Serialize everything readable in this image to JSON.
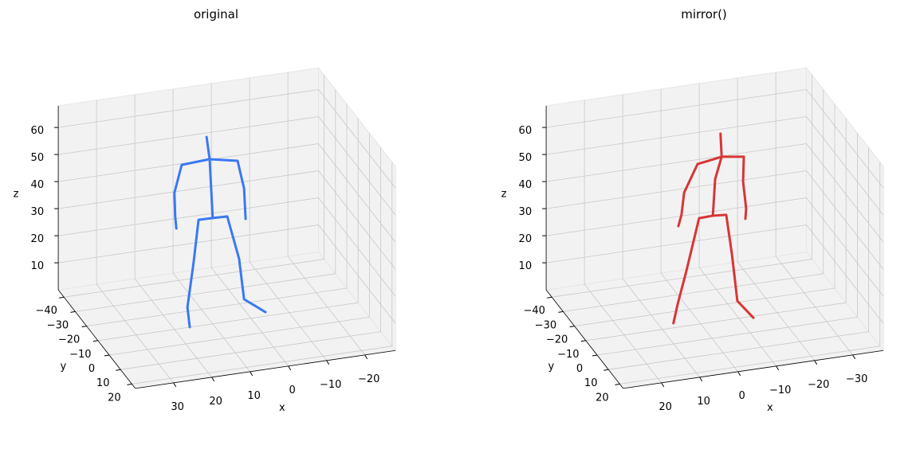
{
  "chart_data": [
    {
      "type": "skeleton3d",
      "title": "original",
      "xlabel": "x",
      "ylabel": "y",
      "zlabel": "z",
      "color": "#3a78f2",
      "xlim": [
        -28,
        40
      ],
      "ylim": [
        -45,
        23
      ],
      "zlim": [
        0,
        68
      ],
      "xticks": [
        {
          "value": -20,
          "label": "−20"
        },
        {
          "value": -10,
          "label": "−10"
        },
        0,
        10,
        20,
        30
      ],
      "yticks": [
        {
          "value": -40,
          "label": "−40"
        },
        {
          "value": -30,
          "label": "−30"
        },
        {
          "value": -20,
          "label": "−20"
        },
        {
          "value": -10,
          "label": "−10"
        },
        0,
        10,
        20
      ],
      "zticks": [
        10,
        20,
        30,
        40,
        50,
        60
      ],
      "limbs": [
        {
          "x": [
            11.6,
            10.8,
            10.0
          ],
          "y": [
            -10,
            -10,
            -10
          ],
          "z": [
            69.4,
            61.0,
            39.1
          ]
        },
        {
          "x": [
            1.4,
            1.8,
            3.5,
            10.8,
            18.1,
            20.0,
            19.8,
            19.5
          ],
          "y": [
            -10,
            -10,
            -10,
            -10,
            -10,
            -10,
            -10,
            -10
          ],
          "z": [
            37.0,
            48.3,
            58.9,
            61.0,
            60.4,
            50.5,
            41.6,
            37.2
          ]
        },
        {
          "x": [
            16.0,
            16.6,
            15.0,
            13.7,
            10.0,
            6.2,
            3.1,
            1.8,
            -3.8
          ],
          "y": [
            -10,
            -10,
            -10,
            -10,
            -10,
            -10,
            -10,
            -10,
            -10
          ],
          "z": [
            0,
            7.5,
            23.6,
            39.2,
            39.1,
            38.9,
            22.6,
            7.4,
            1.5
          ]
        }
      ]
    },
    {
      "type": "skeleton3d",
      "title": "mirror()",
      "xlabel": "x",
      "ylabel": "y",
      "zlabel": "z",
      "color": "#d93535",
      "xlim": [
        -38,
        30
      ],
      "ylim": [
        -45,
        23
      ],
      "zlim": [
        0,
        68
      ],
      "xticks": [
        {
          "value": -30,
          "label": "−30"
        },
        {
          "value": -20,
          "label": "−20"
        },
        {
          "value": -10,
          "label": "−10"
        },
        0,
        10,
        20
      ],
      "yticks": [
        {
          "value": -40,
          "label": "−40"
        },
        {
          "value": -30,
          "label": "−30"
        },
        {
          "value": -20,
          "label": "−20"
        },
        {
          "value": -10,
          "label": "−10"
        },
        0,
        10,
        20
      ],
      "zticks": [
        10,
        20,
        30,
        40,
        50,
        60
      ],
      "limbs": [
        {
          "x": [
            -5.2,
            -5.5,
            -3.8,
            -3.2
          ],
          "y": [
            -10,
            -10,
            -10,
            -10
          ],
          "z": [
            69.2,
            60.6,
            52.7,
            39.3
          ]
        },
        {
          "x": [
            -11.7,
            -11.9,
            -11.1,
            -11.3,
            -5.5,
            0.8,
            4.3,
            5.0,
            5.8
          ],
          "y": [
            -10,
            -10,
            -10,
            -10,
            -10,
            -10,
            -10,
            -10,
            -10
          ],
          "z": [
            36.4,
            40.1,
            50.3,
            59.4,
            60.6,
            59.2,
            49.4,
            41.3,
            37.3
          ]
        },
        {
          "x": [
            7.1,
            6.0,
            3.7,
            0.4,
            -3.2,
            -6.7,
            -8.2,
            -9.6,
            -13.8
          ],
          "y": [
            -10,
            -10,
            -10,
            -10,
            -10,
            -10,
            -10,
            -10,
            -10
          ],
          "z": [
            1.7,
            8.5,
            20.4,
            39.1,
            39.3,
            38.9,
            23.9,
            6.5,
            -0.6
          ]
        }
      ]
    }
  ]
}
